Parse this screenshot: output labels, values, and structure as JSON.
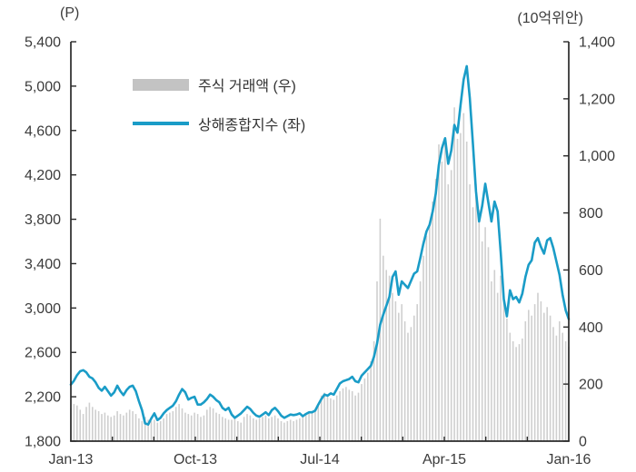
{
  "chart_data": {
    "type": "bar+line",
    "sampling": "weekly samples, Jan-2013 to Jan-2016",
    "x": {
      "labels": [
        "Jan-13",
        "Oct-13",
        "Jul-14",
        "Apr-15",
        "Jan-16"
      ],
      "label_months": [
        0,
        9,
        18,
        27,
        36
      ],
      "minor_tick_months": [
        3,
        6,
        9,
        12,
        15,
        18,
        21,
        24,
        27,
        30,
        33
      ],
      "span_months": 36
    },
    "left_axis": {
      "title": "(P)",
      "min": 1800,
      "max": 5400,
      "tick_values": [
        1800,
        2200,
        2600,
        3000,
        3400,
        3800,
        4200,
        4600,
        5000,
        5400
      ],
      "tick_labels": [
        "1,800",
        "2,200",
        "2,600",
        "3,000",
        "3,400",
        "3,800",
        "4,200",
        "4,600",
        "5,000",
        "5,400"
      ]
    },
    "right_axis": {
      "title": "(10억위안)",
      "min": 0,
      "max": 1400,
      "tick_values": [
        0,
        200,
        400,
        600,
        800,
        1000,
        1200,
        1400
      ],
      "tick_labels": [
        "0",
        "200",
        "400",
        "600",
        "800",
        "1,000",
        "1,200",
        "1,400"
      ]
    },
    "axis_color": "#2a2a2a",
    "series": [
      {
        "name": "주식 거래액 (우)",
        "type": "bar",
        "axis": "right",
        "color": "#cfcfcf",
        "legend_color": "#c3c3c3",
        "values": [
          115,
          130,
          125,
          110,
          95,
          120,
          135,
          120,
          110,
          105,
          95,
          100,
          90,
          85,
          90,
          105,
          95,
          90,
          100,
          110,
          105,
          95,
          80,
          70,
          85,
          75,
          70,
          75,
          65,
          70,
          80,
          95,
          100,
          105,
          120,
          130,
          115,
          100,
          95,
          90,
          100,
          95,
          85,
          90,
          110,
          120,
          115,
          100,
          95,
          85,
          80,
          75,
          75,
          80,
          70,
          65,
          85,
          95,
          90,
          80,
          75,
          80,
          85,
          90,
          80,
          85,
          90,
          80,
          70,
          65,
          70,
          75,
          70,
          75,
          80,
          85,
          95,
          100,
          105,
          110,
          130,
          160,
          170,
          155,
          150,
          145,
          160,
          175,
          185,
          190,
          180,
          175,
          160,
          170,
          200,
          220,
          240,
          280,
          350,
          560,
          780,
          650,
          600,
          580,
          520,
          490,
          450,
          480,
          420,
          380,
          400,
          440,
          480,
          560,
          650,
          720,
          760,
          840,
          920,
          1040,
          980,
          1050,
          900,
          950,
          1170,
          1060,
          1080,
          1150,
          1050,
          900,
          820,
          900,
          810,
          700,
          750,
          680,
          560,
          600,
          520,
          580,
          500,
          430,
          380,
          350,
          330,
          340,
          360,
          420,
          460,
          440,
          480,
          520,
          490,
          450,
          470,
          440,
          400,
          370,
          420,
          380,
          350,
          330
        ]
      },
      {
        "name": "상해종합지수 (좌)",
        "type": "line",
        "axis": "left",
        "color": "#1a9cc7",
        "values": [
          2310,
          2345,
          2395,
          2430,
          2440,
          2420,
          2380,
          2365,
          2330,
          2280,
          2255,
          2290,
          2250,
          2210,
          2240,
          2300,
          2250,
          2215,
          2260,
          2290,
          2300,
          2250,
          2160,
          2080,
          1960,
          1950,
          2005,
          2050,
          1990,
          2010,
          2050,
          2080,
          2100,
          2120,
          2160,
          2220,
          2270,
          2240,
          2175,
          2190,
          2200,
          2130,
          2130,
          2150,
          2180,
          2220,
          2200,
          2170,
          2150,
          2100,
          2080,
          2100,
          2040,
          2010,
          2030,
          2050,
          2080,
          2110,
          2090,
          2055,
          2030,
          2020,
          2040,
          2060,
          2035,
          2080,
          2100,
          2070,
          2030,
          2010,
          2025,
          2040,
          2035,
          2040,
          2050,
          2025,
          2045,
          2060,
          2060,
          2075,
          2130,
          2180,
          2220,
          2210,
          2230,
          2220,
          2270,
          2320,
          2340,
          2350,
          2360,
          2380,
          2340,
          2330,
          2390,
          2420,
          2450,
          2480,
          2560,
          2680,
          2850,
          2940,
          3020,
          3100,
          3280,
          3330,
          3120,
          3240,
          3210,
          3180,
          3245,
          3310,
          3330,
          3450,
          3580,
          3690,
          3750,
          3870,
          4030,
          4290,
          4440,
          4530,
          4300,
          4420,
          4650,
          4580,
          4830,
          5060,
          5180,
          4890,
          4480,
          4050,
          3780,
          3920,
          4120,
          3950,
          3780,
          3960,
          3870,
          3500,
          3080,
          2925,
          3160,
          3080,
          3100,
          3050,
          3130,
          3280,
          3390,
          3430,
          3590,
          3630,
          3550,
          3490,
          3610,
          3630,
          3540,
          3420,
          3300,
          3120,
          2980,
          2900
        ]
      }
    ]
  }
}
